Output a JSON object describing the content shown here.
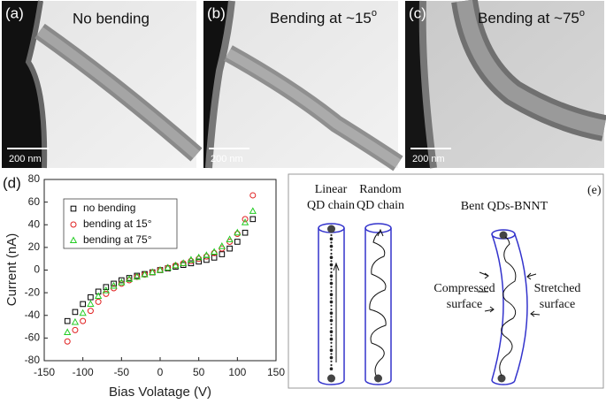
{
  "panels": [
    {
      "label": "(a)",
      "caption": {
        "text": "No bending"
      },
      "scale_bar": "200 nm"
    },
    {
      "label": "(b)",
      "caption": {
        "text": "Bending at ~15",
        "sup": "o"
      },
      "scale_bar": "200 nm"
    },
    {
      "label": "(c)",
      "caption": {
        "text": "Bending at ~75",
        "sup": "o"
      },
      "scale_bar": "200 nm"
    }
  ],
  "chart_data": {
    "type": "scatter",
    "panel_label": "(d)",
    "x_label": "Bias Volatage (V)",
    "y_label": "Current (nA)",
    "xlim": [
      -150,
      150
    ],
    "xticks": [
      -150,
      -100,
      -50,
      0,
      50,
      100,
      150
    ],
    "ylim": [
      -80,
      80
    ],
    "yticks": [
      -80,
      -60,
      -40,
      -20,
      0,
      20,
      40,
      60,
      80
    ],
    "legend": "upper left",
    "x": [
      -120,
      -110,
      -100,
      -90,
      -80,
      -70,
      -60,
      -50,
      -40,
      -30,
      -20,
      -10,
      0,
      10,
      20,
      30,
      40,
      50,
      60,
      70,
      80,
      90,
      100,
      110,
      120
    ],
    "series": [
      {
        "name": "no bending",
        "color": "#000000",
        "marker": "square",
        "values": [
          -45,
          -37,
          -30,
          -24,
          -19,
          -15,
          -12,
          -9,
          -7,
          -5,
          -3.5,
          -2,
          0,
          1.5,
          3,
          4.5,
          6,
          7.5,
          9,
          11,
          14,
          19,
          25,
          33,
          45
        ]
      },
      {
        "name": "bending at 15°",
        "color": "#e02020",
        "marker": "circle",
        "values": [
          -63,
          -53,
          -45,
          -36,
          -28,
          -21,
          -16,
          -12,
          -9,
          -6,
          -4,
          -2,
          0,
          2,
          4,
          6,
          8,
          10,
          12,
          15,
          19,
          25,
          32,
          45,
          66
        ]
      },
      {
        "name": "bending at 75°",
        "color": "#22cc22",
        "marker": "triangle",
        "values": [
          -55,
          -46,
          -38,
          -30,
          -23,
          -18,
          -14,
          -11,
          -8,
          -6,
          -4,
          -2,
          0,
          2,
          4,
          6,
          9,
          11,
          13,
          16,
          21,
          27,
          33,
          42,
          52
        ]
      }
    ]
  },
  "diagram": {
    "label": "(e)",
    "linear": [
      "Linear",
      "QD chain"
    ],
    "random": [
      "Random",
      "QD chain"
    ],
    "bent": "Bent QDs-BNNT",
    "compressed": [
      "Compressed",
      "surface"
    ],
    "stretched": [
      "Stretched",
      "surface"
    ]
  }
}
